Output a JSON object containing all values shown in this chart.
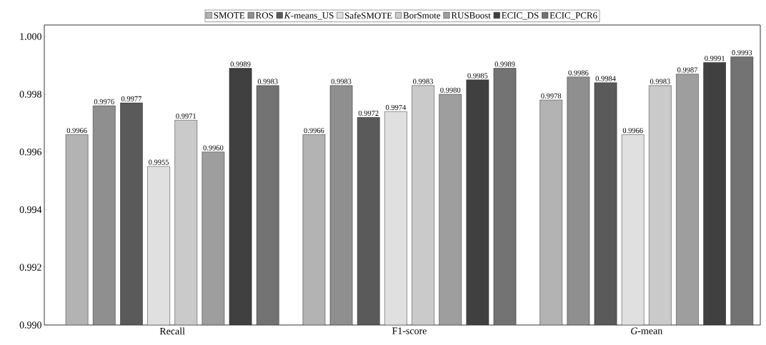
{
  "chart_data": {
    "type": "bar",
    "categories": [
      "Recall",
      "F1-score",
      "*G*-mean"
    ],
    "series": [
      {
        "name": "SMOTE",
        "color": "#b3b3b3",
        "values": [
          0.9966,
          0.9966,
          0.9978
        ],
        "value_labels": [
          "0.9966",
          "0.9966",
          "0.9978"
        ]
      },
      {
        "name": "ROS",
        "color": "#8f8f8f",
        "values": [
          0.9976,
          0.9983,
          0.9986
        ],
        "value_labels": [
          "0.9976",
          "0.9983",
          "0.9986"
        ]
      },
      {
        "name": "*K*-means_US",
        "color": "#5a5a5a",
        "values": [
          0.9977,
          0.9972,
          0.9984
        ],
        "value_labels": [
          "0.9977",
          "0.9972",
          "0.9984"
        ]
      },
      {
        "name": "SafeSMOTE",
        "color": "#e0e0e0",
        "values": [
          0.9955,
          0.9974,
          0.9966
        ],
        "value_labels": [
          "0.9955",
          "0.9974",
          "0.9966"
        ]
      },
      {
        "name": "BorSmote",
        "color": "#cacaca",
        "values": [
          0.9971,
          0.9983,
          0.9983
        ],
        "value_labels": [
          "0.9971",
          "0.9983",
          "0.9983"
        ]
      },
      {
        "name": "RUSBoost",
        "color": "#9e9e9e",
        "values": [
          0.996,
          0.998,
          0.9987
        ],
        "value_labels": [
          "0.9960",
          "0.9980",
          "0.9987"
        ]
      },
      {
        "name": "ECIC_DS",
        "color": "#404040",
        "values": [
          0.9989,
          0.9985,
          0.9991
        ],
        "value_labels": [
          "0.9989",
          "0.9985",
          "0.9991"
        ]
      },
      {
        "name": "ECIC_PCR6",
        "color": "#737373",
        "values": [
          0.9983,
          0.9989,
          0.9993
        ],
        "value_labels": [
          "0.9983",
          "0.9989",
          "0.9993"
        ]
      }
    ],
    "ylim": [
      0.99,
      1.0004
    ],
    "yticks": [
      {
        "value": 0.99,
        "label": "0.990"
      },
      {
        "value": 0.992,
        "label": "0.992"
      },
      {
        "value": 0.994,
        "label": "0.994"
      },
      {
        "value": 0.996,
        "label": "0.996"
      },
      {
        "value": 0.998,
        "label": "0.998"
      },
      {
        "value": 1.0,
        "label": "1.000"
      }
    ],
    "legend": "top",
    "grid": false
  }
}
